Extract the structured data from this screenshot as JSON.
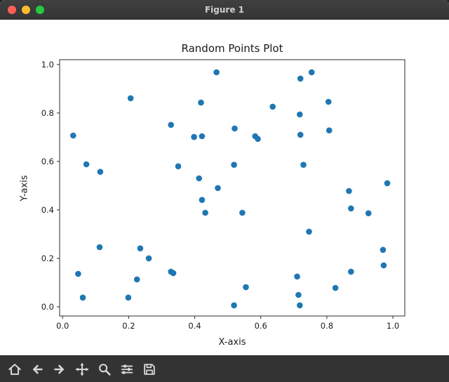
{
  "window": {
    "title": "Figure 1"
  },
  "traffic_lights": {
    "close_color": "#ff5f57",
    "minimize_color": "#febb2e",
    "maximize_color": "#27c93f"
  },
  "toolbar": {
    "icons": [
      "home-icon",
      "back-icon",
      "forward-icon",
      "pan-icon",
      "zoom-icon",
      "subplots-icon",
      "save-icon"
    ]
  },
  "chart_data": {
    "type": "scatter",
    "title": "Random Points Plot",
    "xlabel": "X-axis",
    "ylabel": "Y-axis",
    "xlim": [
      -0.009,
      1.036
    ],
    "ylim": [
      -0.038,
      1.02
    ],
    "xticks": [
      0.0,
      0.2,
      0.4,
      0.6,
      0.8,
      1.0
    ],
    "yticks": [
      0.0,
      0.2,
      0.4,
      0.6,
      0.8,
      1.0
    ],
    "grid": false,
    "legend": false,
    "marker_color": "#1f77b4",
    "points": [
      [
        0.466,
        0.968
      ],
      [
        0.72,
        0.942
      ],
      [
        0.754,
        0.968
      ],
      [
        0.206,
        0.861
      ],
      [
        0.419,
        0.843
      ],
      [
        0.636,
        0.826
      ],
      [
        0.805,
        0.846
      ],
      [
        0.718,
        0.794
      ],
      [
        0.328,
        0.751
      ],
      [
        0.032,
        0.707
      ],
      [
        0.398,
        0.701
      ],
      [
        0.422,
        0.704
      ],
      [
        0.521,
        0.736
      ],
      [
        0.583,
        0.704
      ],
      [
        0.591,
        0.693
      ],
      [
        0.72,
        0.71
      ],
      [
        0.807,
        0.728
      ],
      [
        0.072,
        0.588
      ],
      [
        0.114,
        0.557
      ],
      [
        0.35,
        0.58
      ],
      [
        0.519,
        0.586
      ],
      [
        0.729,
        0.586
      ],
      [
        0.983,
        0.51
      ],
      [
        0.413,
        0.53
      ],
      [
        0.47,
        0.49
      ],
      [
        0.422,
        0.441
      ],
      [
        0.432,
        0.388
      ],
      [
        0.544,
        0.388
      ],
      [
        0.867,
        0.478
      ],
      [
        0.873,
        0.406
      ],
      [
        0.926,
        0.386
      ],
      [
        0.746,
        0.31
      ],
      [
        0.112,
        0.246
      ],
      [
        0.235,
        0.241
      ],
      [
        0.261,
        0.2
      ],
      [
        0.328,
        0.145
      ],
      [
        0.335,
        0.139
      ],
      [
        0.047,
        0.136
      ],
      [
        0.061,
        0.038
      ],
      [
        0.199,
        0.038
      ],
      [
        0.225,
        0.113
      ],
      [
        0.555,
        0.081
      ],
      [
        0.519,
        0.006
      ],
      [
        0.71,
        0.125
      ],
      [
        0.714,
        0.049
      ],
      [
        0.718,
        0.006
      ],
      [
        0.826,
        0.078
      ],
      [
        0.873,
        0.145
      ],
      [
        0.97,
        0.235
      ],
      [
        0.972,
        0.171
      ]
    ]
  }
}
